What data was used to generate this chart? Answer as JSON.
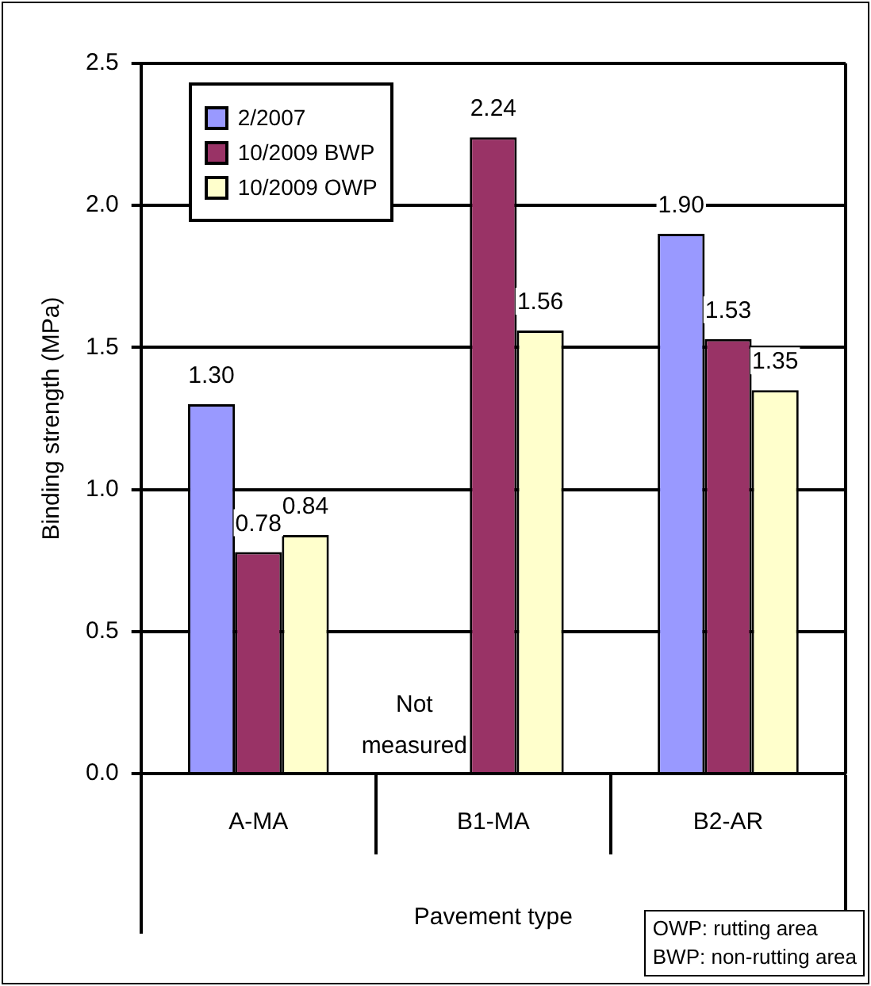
{
  "chart_data": {
    "type": "bar",
    "xlabel": "Pavement type",
    "ylabel": "Binding strength (MPa)",
    "categories": [
      "A-MA",
      "B1-MA",
      "B2-AR"
    ],
    "series": [
      {
        "name": "2/2007",
        "color": "#9999ff",
        "values": [
          1.3,
          null,
          1.9
        ],
        "value_labels": [
          "1.30",
          null,
          "1.90"
        ]
      },
      {
        "name": "10/2009 BWP",
        "color": "#993366",
        "values": [
          0.78,
          2.24,
          1.53
        ],
        "value_labels": [
          "0.78",
          "2.24",
          "1.53"
        ]
      },
      {
        "name": "10/2009 OWP",
        "color": "#ffffcc",
        "values": [
          0.84,
          1.56,
          1.35
        ],
        "value_labels": [
          "0.84",
          "1.56",
          "1.35"
        ]
      }
    ],
    "ylim": [
      0,
      2.5
    ],
    "yticks": [
      {
        "value": 0,
        "label": "0.0"
      },
      {
        "value": 0.5,
        "label": "0.5"
      },
      {
        "value": 1,
        "label": "1.0"
      },
      {
        "value": 1.5,
        "label": "1.5"
      },
      {
        "value": 2,
        "label": "2.0"
      },
      {
        "value": 2.5,
        "label": "2.5"
      }
    ],
    "grid": "y",
    "legend": "top left",
    "annotations": [
      "Not measured",
      "OWP: rutting area\nBWP: non-rutting area"
    ]
  }
}
